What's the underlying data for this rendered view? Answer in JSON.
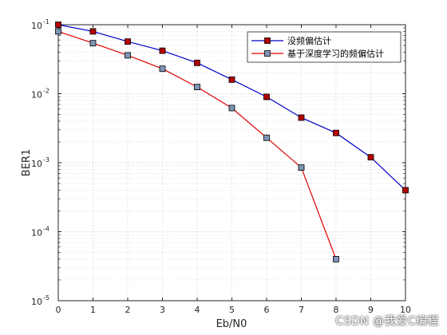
{
  "chart_data": {
    "type": "line",
    "xlabel": "Eb/N0",
    "ylabel": "BER1",
    "xlim": [
      0,
      10
    ],
    "ylim": [
      1e-05,
      0.1
    ],
    "yscale": "log",
    "grid": true,
    "legend_position": "top-right",
    "x_ticks": [
      "0",
      "1",
      "2",
      "3",
      "4",
      "5",
      "6",
      "7",
      "8",
      "9",
      "10"
    ],
    "y_ticks": [
      {
        "base": "10",
        "exp": "-1",
        "value": 0.1
      },
      {
        "base": "10",
        "exp": "-2",
        "value": 0.01
      },
      {
        "base": "10",
        "exp": "-3",
        "value": 0.001
      },
      {
        "base": "10",
        "exp": "-4",
        "value": 0.0001
      },
      {
        "base": "10",
        "exp": "-5",
        "value": 1e-05
      }
    ],
    "series": [
      {
        "name": "没频偏估计",
        "color": "#0000cc",
        "marker_color": "#b30000",
        "x": [
          0,
          1,
          2,
          3,
          4,
          5,
          6,
          7,
          8,
          9,
          10
        ],
        "y": [
          0.1,
          0.08,
          0.057,
          0.042,
          0.028,
          0.016,
          0.009,
          0.0045,
          0.0027,
          0.0012,
          0.0004
        ]
      },
      {
        "name": "基于深度学习的频偏估计",
        "color": "#dd0000",
        "marker_color": "#7f95b5",
        "x": [
          0,
          1,
          2,
          3,
          4,
          5,
          6,
          7,
          8
        ],
        "y": [
          0.08,
          0.054,
          0.036,
          0.023,
          0.0125,
          0.0062,
          0.0023,
          0.00085,
          4e-05
        ]
      }
    ]
  },
  "watermark": "CSDN @我爱C编程"
}
